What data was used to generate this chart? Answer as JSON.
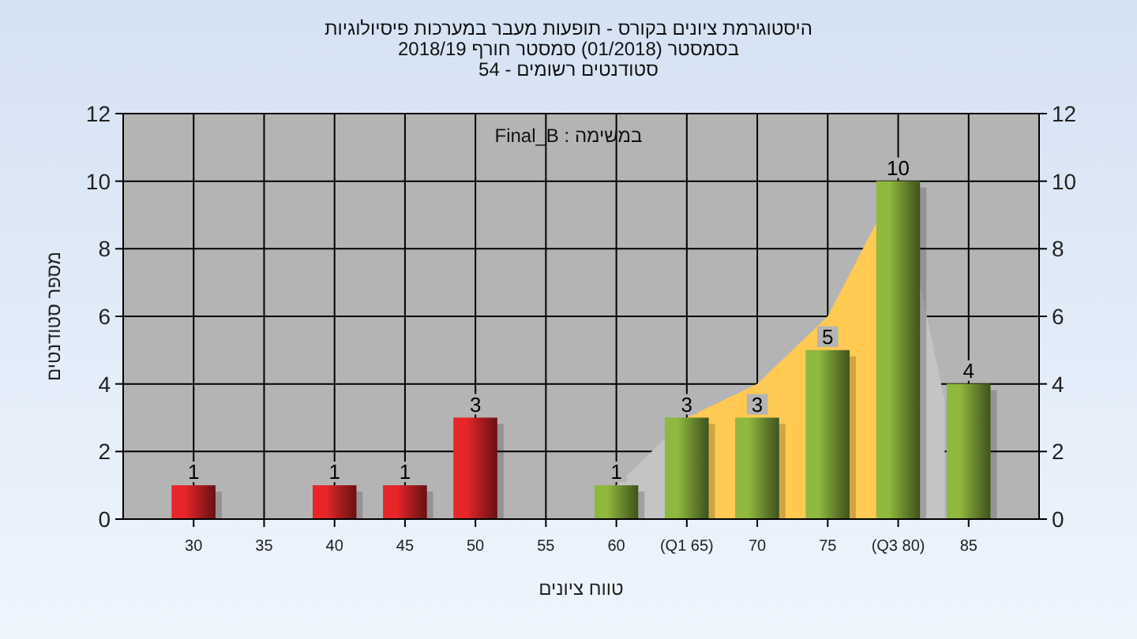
{
  "chart_data": {
    "type": "bar",
    "title": "היסטוגרמת ציונים בקורס - תופעות מעבר במערכות פיסיולוגיות",
    "subtitle": "בסמסטר  (01/2018)  סמסטר חורף 2018/19\nסטודנטים רשומים - 54",
    "annotations": [
      "במשימה : Final_B"
    ],
    "xlabel": "טווח ציונים",
    "ylabel": "מספר סטודנטים",
    "xlim": [
      25,
      90
    ],
    "xticks": [
      30,
      35,
      40,
      45,
      50,
      55,
      60,
      {
        "value": 65,
        "label": "(Q1 65)"
      },
      70,
      75,
      {
        "value": 80,
        "label": "(Q3 80)"
      },
      85
    ],
    "ylim": [
      0,
      12
    ],
    "yticks": [
      0,
      2,
      4,
      6,
      8,
      10,
      12
    ],
    "y2lim": [
      0,
      12
    ],
    "y2ticks": [
      0,
      2,
      4,
      6,
      8,
      10,
      12
    ],
    "grid": true,
    "series": [
      {
        "type": "area",
        "color": "#c4c4c4",
        "x": [
          60,
          65,
          70,
          75,
          80,
          83.3
        ],
        "values": [
          1,
          3,
          4,
          6,
          10,
          3.5
        ]
      },
      {
        "type": "area",
        "color": "#ffc952",
        "x": [
          65,
          70,
          75,
          80
        ],
        "values": [
          3,
          4,
          6,
          10
        ]
      },
      {
        "x": [
          30,
          40,
          45,
          50,
          60,
          65,
          70,
          75,
          80,
          85
        ],
        "values": [
          1,
          1,
          1,
          3,
          1,
          3,
          3,
          5,
          10,
          4
        ],
        "value_labels": [
          "1",
          "1",
          "1",
          "3",
          "1",
          "3",
          "3",
          "5",
          "10",
          "4"
        ],
        "colors": [
          "#e8262a",
          "#e8262a",
          "#e8262a",
          "#e8262a",
          "#8fb83e",
          "#8fb83e",
          "#8fb83e",
          "#8fb83e",
          "#8fb83e",
          "#8fb83e"
        ]
      }
    ]
  }
}
